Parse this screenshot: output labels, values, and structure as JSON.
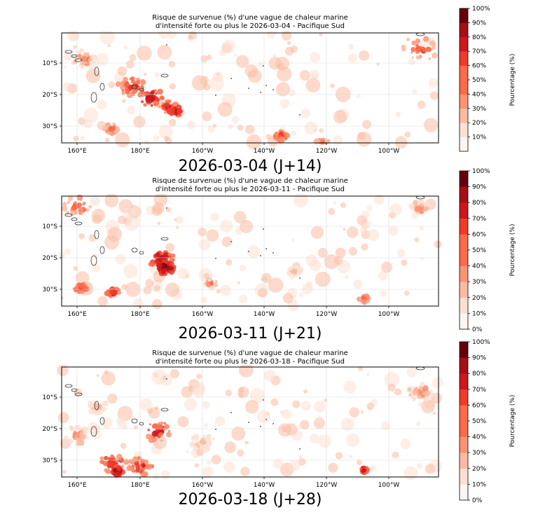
{
  "colors": {
    "scale": [
      "#fff5f0",
      "#fee0d2",
      "#fcbba1",
      "#fc9272",
      "#fb6a4a",
      "#ef3b2c",
      "#cb181d",
      "#a50f15",
      "#67000d"
    ],
    "grid": "#d9d9d9",
    "coast": "#333333"
  },
  "axes": {
    "lon_ticks": [
      "160°E",
      "180°E",
      "160°W",
      "140°W",
      "120°W",
      "100°W"
    ],
    "lat_ticks": [
      "10°S",
      "20°S",
      "30°S"
    ]
  },
  "colorbar": {
    "label": "Pourcentage (%)",
    "ticks": [
      "0%",
      "10%",
      "20%",
      "30%",
      "40%",
      "50%",
      "60%",
      "70%",
      "80%",
      "90%",
      "100%"
    ]
  },
  "panels": [
    {
      "title_line1": "Risque de survenue (%) d'une vague de chaleur marine",
      "title_line2": "d'intensité forte ou plus le 2026-03-04 - Pacifique Sud",
      "date_label": "2026-03-04 (J+14)"
    },
    {
      "title_line1": "Risque de survenue (%) d'une vague de chaleur marine",
      "title_line2": "d'intensité forte ou plus le 2026-03-11 - Pacifique Sud",
      "date_label": "2026-03-11 (J+21)"
    },
    {
      "title_line1": "Risque de survenue (%) d'une vague de chaleur marine",
      "title_line2": "d'intensité forte ou plus le 2026-03-18 - Pacifique Sud",
      "date_label": "2026-03-18 (J+28)"
    }
  ]
}
